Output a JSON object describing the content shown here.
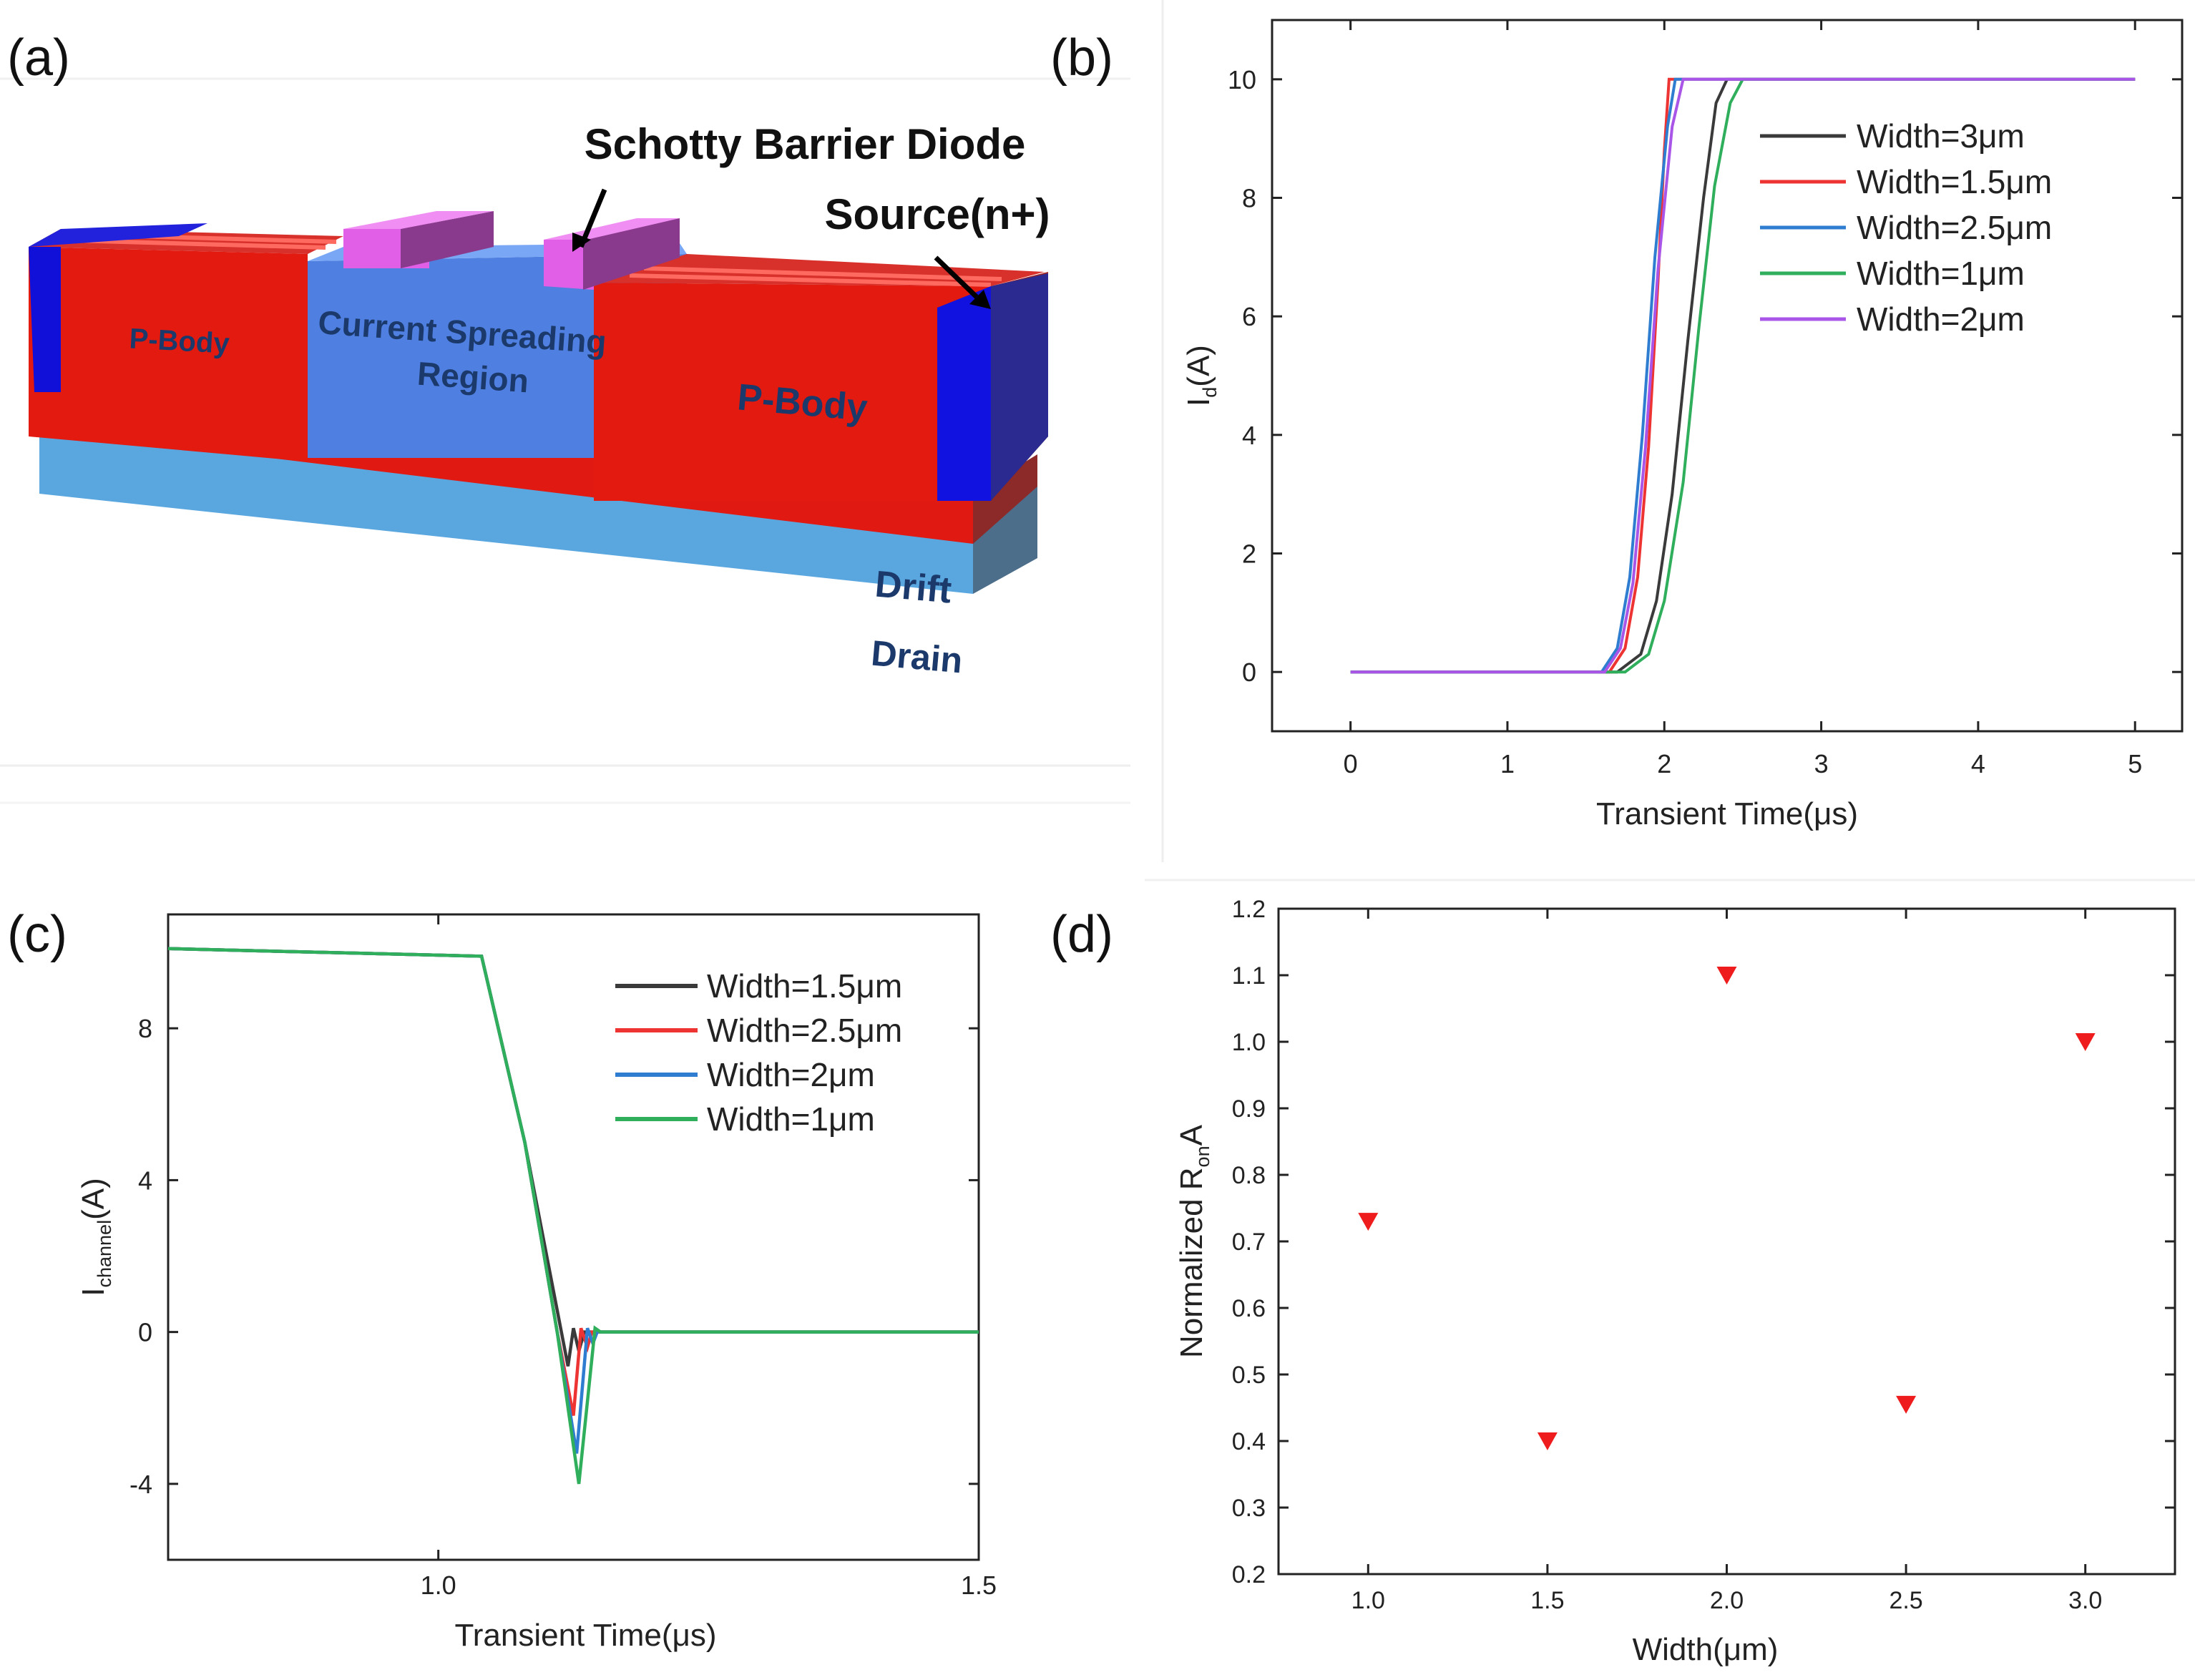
{
  "panels": {
    "a": {
      "label": "(a)",
      "schottky_label": "Schotty Barrier Diode",
      "source_label": "Source(n+)",
      "pbody_left": "P-Body",
      "pbody_right": "P-Body",
      "csr_line1": "Current Spreading",
      "csr_line2": "Region",
      "drift": "Drift",
      "drain": "Drain"
    },
    "b": {
      "label": "(b)"
    },
    "c": {
      "label": "(c)"
    },
    "d": {
      "label": "(d)"
    }
  },
  "chart_data": [
    {
      "id": "b",
      "type": "line",
      "xlabel": "Transient Time(μs)",
      "ylabel_main": "I",
      "ylabel_sub": "d",
      "ylabel_tail": "(A)",
      "xlim": [
        -0.5,
        5.3
      ],
      "ylim": [
        -1,
        11
      ],
      "xticks": [
        0,
        1,
        2,
        3,
        4,
        5
      ],
      "yticks": [
        0,
        2,
        4,
        6,
        8,
        10
      ],
      "series": [
        {
          "name": "Width=3μm",
          "color": "#3a3a3a",
          "points": [
            [
              0,
              0
            ],
            [
              1.7,
              0
            ],
            [
              1.85,
              0.3
            ],
            [
              1.95,
              1.2
            ],
            [
              2.05,
              3
            ],
            [
              2.15,
              5.6
            ],
            [
              2.25,
              8
            ],
            [
              2.33,
              9.6
            ],
            [
              2.4,
              10
            ],
            [
              5,
              10
            ]
          ]
        },
        {
          "name": "Width=1.5μm",
          "color": "#ee3333",
          "points": [
            [
              0,
              0
            ],
            [
              1.65,
              0
            ],
            [
              1.75,
              0.4
            ],
            [
              1.83,
              1.6
            ],
            [
              1.9,
              3.8
            ],
            [
              1.96,
              6.6
            ],
            [
              2.0,
              8.8
            ],
            [
              2.03,
              10
            ],
            [
              5,
              10
            ]
          ]
        },
        {
          "name": "Width=2.5μm",
          "color": "#2e7dd1",
          "points": [
            [
              0,
              0
            ],
            [
              1.6,
              0
            ],
            [
              1.7,
              0.4
            ],
            [
              1.78,
              1.6
            ],
            [
              1.86,
              4
            ],
            [
              1.94,
              7
            ],
            [
              2.02,
              9.2
            ],
            [
              2.07,
              10
            ],
            [
              5,
              10
            ]
          ]
        },
        {
          "name": "Width=1μm",
          "color": "#2fae5c",
          "points": [
            [
              0,
              0
            ],
            [
              1.75,
              0
            ],
            [
              1.9,
              0.3
            ],
            [
              2.0,
              1.2
            ],
            [
              2.12,
              3.2
            ],
            [
              2.22,
              5.8
            ],
            [
              2.32,
              8.2
            ],
            [
              2.42,
              9.6
            ],
            [
              2.5,
              10
            ],
            [
              5,
              10
            ]
          ]
        },
        {
          "name": "Width=2μm",
          "color": "#a855e8",
          "points": [
            [
              0,
              0
            ],
            [
              1.62,
              0
            ],
            [
              1.72,
              0.4
            ],
            [
              1.8,
              1.5
            ],
            [
              1.88,
              3.8
            ],
            [
              1.96,
              6.8
            ],
            [
              2.05,
              9.2
            ],
            [
              2.12,
              10
            ],
            [
              5,
              10
            ]
          ]
        }
      ]
    },
    {
      "id": "c",
      "type": "line",
      "xlabel": "Transient Time(μs)",
      "ylabel_main": "I",
      "ylabel_sub": "channel",
      "ylabel_tail": "(A)",
      "xlim": [
        0.75,
        1.5
      ],
      "ylim": [
        -6,
        11
      ],
      "xticks": [
        1.0,
        1.5
      ],
      "xtick_labels": [
        "1.0",
        "1.5"
      ],
      "yticks": [
        -4,
        0,
        4,
        8
      ],
      "series": [
        {
          "name": "Width=1.5μm",
          "color": "#3a3a3a",
          "points": [
            [
              0.75,
              10.1
            ],
            [
              1.04,
              9.9
            ],
            [
              1.08,
              5
            ],
            [
              1.12,
              -0.9
            ],
            [
              1.125,
              0.1
            ],
            [
              1.13,
              -0.5
            ],
            [
              1.135,
              0
            ],
            [
              1.5,
              0
            ]
          ]
        },
        {
          "name": "Width=2.5μm",
          "color": "#ee3333",
          "points": [
            [
              0.75,
              10.1
            ],
            [
              1.04,
              9.9
            ],
            [
              1.08,
              5
            ],
            [
              1.11,
              0
            ],
            [
              1.125,
              -2.2
            ],
            [
              1.132,
              0.1
            ],
            [
              1.138,
              -0.4
            ],
            [
              1.142,
              0
            ],
            [
              1.5,
              0
            ]
          ]
        },
        {
          "name": "Width=2μm",
          "color": "#2e7dd1",
          "points": [
            [
              0.75,
              10.1
            ],
            [
              1.04,
              9.9
            ],
            [
              1.08,
              5
            ],
            [
              1.11,
              0
            ],
            [
              1.128,
              -3.2
            ],
            [
              1.138,
              0.1
            ],
            [
              1.143,
              -0.3
            ],
            [
              1.147,
              0
            ],
            [
              1.5,
              0
            ]
          ]
        },
        {
          "name": "Width=1μm",
          "color": "#2fae5c",
          "points": [
            [
              0.75,
              10.1
            ],
            [
              1.04,
              9.9
            ],
            [
              1.08,
              5
            ],
            [
              1.11,
              0
            ],
            [
              1.13,
              -4.0
            ],
            [
              1.145,
              0.1
            ],
            [
              1.15,
              0
            ],
            [
              1.5,
              0
            ]
          ]
        }
      ]
    },
    {
      "id": "d",
      "type": "scatter",
      "xlabel": "Width(μm)",
      "ylabel_main": "Normalized R",
      "ylabel_sub": "on",
      "ylabel_tail": "A",
      "xlim": [
        0.75,
        3.25
      ],
      "ylim": [
        0.2,
        1.2
      ],
      "xticks": [
        1.0,
        1.5,
        2.0,
        2.5,
        3.0
      ],
      "xtick_labels": [
        "1.0",
        "1.5",
        "2.0",
        "2.5",
        "3.0"
      ],
      "yticks": [
        0.2,
        0.3,
        0.4,
        0.5,
        0.6,
        0.7,
        0.8,
        0.9,
        1.0,
        1.1,
        1.2
      ],
      "ytick_labels": [
        "0.2",
        "0.3",
        "0.4",
        "0.5",
        "0.6",
        "0.7",
        "0.8",
        "0.9",
        "1.0",
        "1.1",
        "1.2"
      ],
      "marker": "down-triangle",
      "color": "#ee1c1c",
      "points": [
        [
          1.0,
          0.73
        ],
        [
          1.5,
          0.4
        ],
        [
          2.0,
          1.1
        ],
        [
          2.5,
          0.455
        ],
        [
          3.0,
          1.0
        ]
      ]
    }
  ]
}
